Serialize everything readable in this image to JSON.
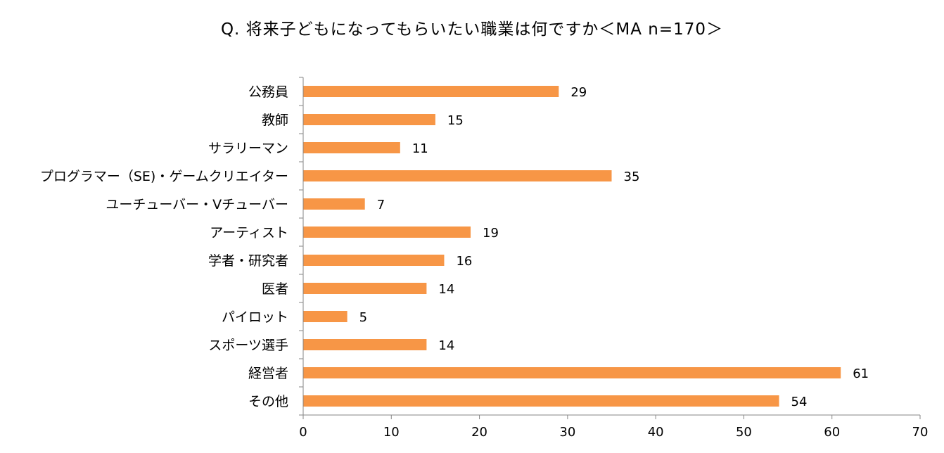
{
  "chart_data": {
    "type": "bar",
    "orientation": "horizontal",
    "title": "Q. 将来子どもになってもらいたい職業は何ですか＜MA n=170＞",
    "xlabel": "",
    "ylabel": "",
    "categories": [
      "公務員",
      "教師",
      "サラリーマン",
      "プログラマー（SE)・ゲームクリエイター",
      "ユーチューバー・Vチューバー",
      "アーティスト",
      "学者・研究者",
      "医者",
      "パイロット",
      "スポーツ選手",
      "経営者",
      "その他"
    ],
    "values": [
      29,
      15,
      11,
      35,
      7,
      19,
      16,
      14,
      5,
      14,
      61,
      54
    ],
    "xlim": [
      0,
      70
    ],
    "xticks": [
      0,
      10,
      20,
      30,
      40,
      50,
      60,
      70
    ],
    "grid": false,
    "legend": "none",
    "bar_color": "#f79646"
  }
}
